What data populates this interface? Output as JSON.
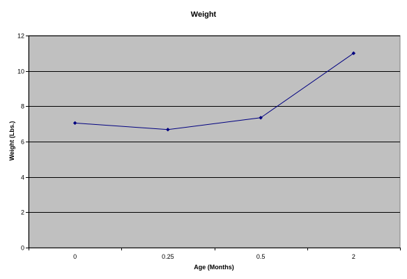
{
  "chart_data": {
    "type": "line",
    "title": "Weight",
    "xlabel": "Age (Months)",
    "ylabel": "Weight (Lbs.)",
    "categories": [
      "0",
      "0.25",
      "0.5",
      "2"
    ],
    "series": [
      {
        "values": [
          7.05,
          6.68,
          7.35,
          11.0
        ]
      }
    ],
    "ylim": [
      0,
      12
    ],
    "yticks": [
      "0",
      "2",
      "4",
      "6",
      "8",
      "10",
      "12"
    ],
    "grid": true,
    "legend": "none",
    "colors": {
      "plot_background": "#c0c0c0",
      "gridline": "#000000",
      "series_line": "#000080",
      "marker": "#000080"
    }
  }
}
